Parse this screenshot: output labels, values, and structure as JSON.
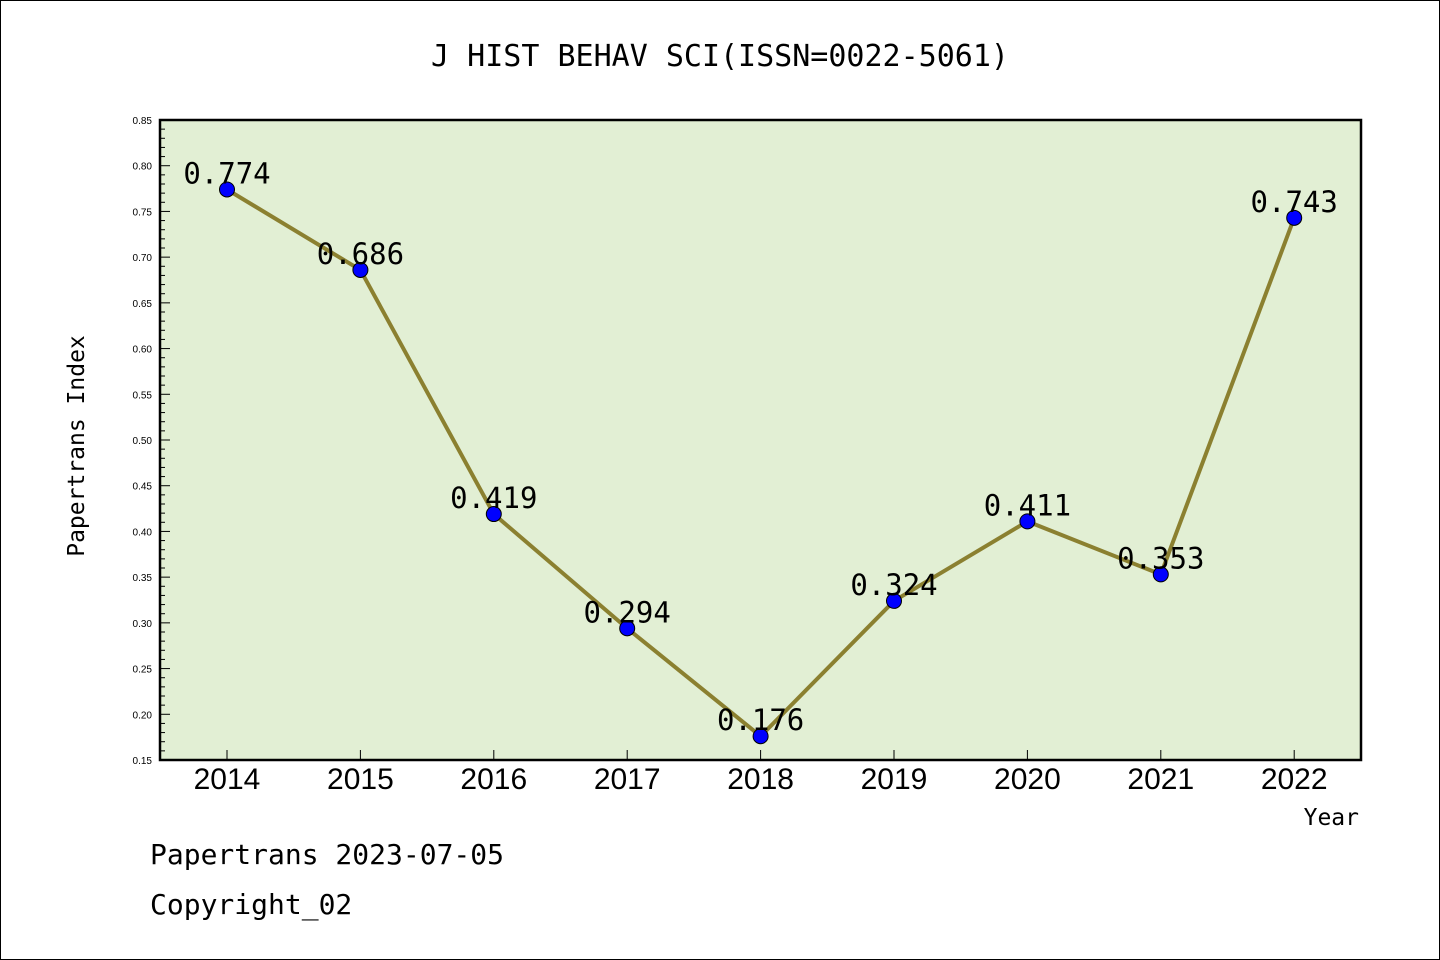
{
  "chart_data": {
    "type": "line",
    "title": "J HIST BEHAV SCI(ISSN=0022-5061)",
    "xlabel": "Year",
    "ylabel": "Papertrans Index",
    "categories": [
      "2014",
      "2015",
      "2016",
      "2017",
      "2018",
      "2019",
      "2020",
      "2021",
      "2022"
    ],
    "series": [
      {
        "values": [
          0.774,
          0.686,
          0.419,
          0.294,
          0.176,
          0.324,
          0.411,
          0.353,
          0.743
        ],
        "data_labels": [
          "0.774",
          "0.686",
          "0.419",
          "0.294",
          "0.176",
          "0.324",
          "0.411",
          "0.353",
          "0.743"
        ]
      }
    ],
    "ylim": [
      0.15,
      0.85
    ],
    "yticks": [
      "0.15",
      "0.20",
      "0.25",
      "0.30",
      "0.35",
      "0.40",
      "0.45",
      "0.50",
      "0.55",
      "0.60",
      "0.65",
      "0.70",
      "0.75",
      "0.80",
      "0.85"
    ],
    "grid": false,
    "colors": {
      "plot_background": "#e2efd4",
      "line": "#8b8030",
      "marker": "#0000ff"
    }
  },
  "footer": {
    "line1": "Papertrans 2023-07-05",
    "line2": "Copyright_02"
  }
}
